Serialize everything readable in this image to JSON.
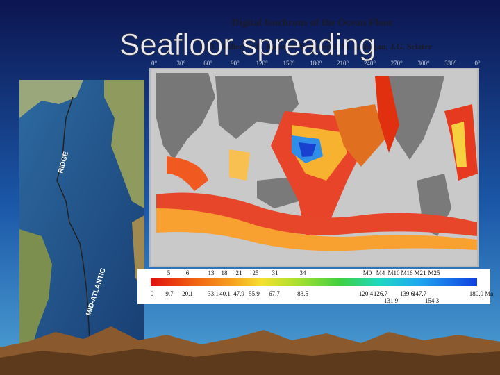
{
  "slide": {
    "title": "Seafloor spreading",
    "figure_title": "Digital Isochrons of the Ocean Floor",
    "figure_authors": "R.D. Müller, W.R. Roest, J.-Y. Royer, L.M. Gahagan, J.G. Sclater",
    "longitudes": [
      "0°",
      "30°",
      "60°",
      "90°",
      "120°",
      "150°",
      "180°",
      "210°",
      "240°",
      "270°",
      "300°",
      "330°",
      "0°"
    ],
    "map_labels": [
      "RIDGE",
      "MID-ATLANTIC"
    ],
    "chrons": [
      "5",
      "6",
      "13",
      "18",
      "21",
      "25",
      "31",
      "34",
      "M0",
      "M4",
      "M10",
      "M16",
      "M21",
      "M25"
    ],
    "ages": [
      "0",
      "9.7",
      "20.1",
      "33.1",
      "40.1",
      "47.9",
      "55.9",
      "67.7",
      "83.5",
      "120.4",
      "126.7",
      "131.9",
      "139.6",
      "147.7",
      "154.3",
      "180.0 Ma"
    ]
  }
}
